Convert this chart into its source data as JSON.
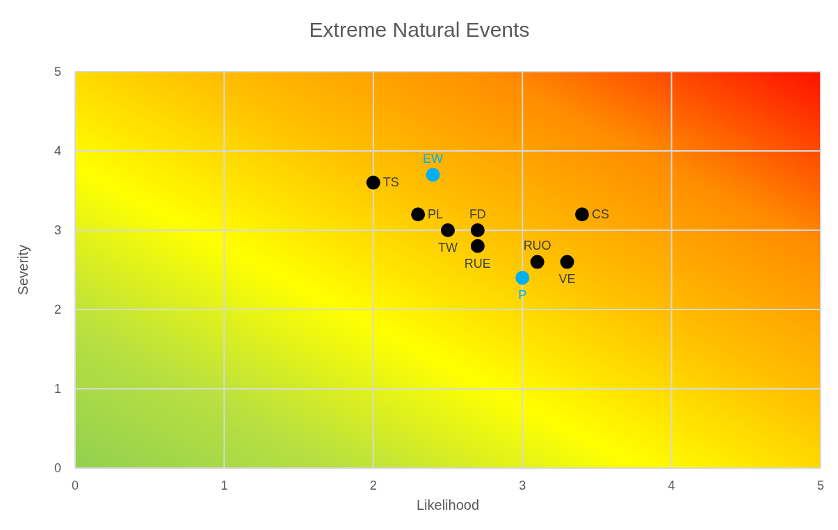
{
  "chart_data": {
    "type": "scatter",
    "title": "Extreme Natural Events",
    "xlabel": "Likelihood",
    "ylabel": "Severity",
    "xlim": [
      0,
      5
    ],
    "ylim": [
      0,
      5
    ],
    "xticks": [
      0,
      1,
      2,
      3,
      4,
      5
    ],
    "yticks": [
      0,
      1,
      2,
      3,
      4,
      5
    ],
    "grid": true,
    "marker": "circle",
    "series": [
      {
        "name": "TS",
        "color": "#000000",
        "x": [
          2.0
        ],
        "values": [
          3.6
        ]
      },
      {
        "name": "EW",
        "color": "#00b0f0",
        "x": [
          2.4
        ],
        "values": [
          3.7
        ]
      },
      {
        "name": "PL",
        "color": "#000000",
        "x": [
          2.3
        ],
        "values": [
          3.2
        ]
      },
      {
        "name": "TW",
        "color": "#000000",
        "x": [
          2.5
        ],
        "values": [
          3.0
        ]
      },
      {
        "name": "FD",
        "color": "#000000",
        "x": [
          2.7
        ],
        "values": [
          3.0
        ]
      },
      {
        "name": "RUE",
        "color": "#000000",
        "x": [
          2.7
        ],
        "values": [
          2.8
        ]
      },
      {
        "name": "RUO",
        "color": "#000000",
        "x": [
          3.1
        ],
        "values": [
          2.6
        ]
      },
      {
        "name": "VE",
        "color": "#000000",
        "x": [
          3.3
        ],
        "values": [
          2.6
        ]
      },
      {
        "name": "P",
        "color": "#00b0f0",
        "x": [
          3.0
        ],
        "values": [
          2.4
        ]
      },
      {
        "name": "CS",
        "color": "#000000",
        "x": [
          3.4
        ],
        "values": [
          3.2
        ]
      }
    ]
  }
}
